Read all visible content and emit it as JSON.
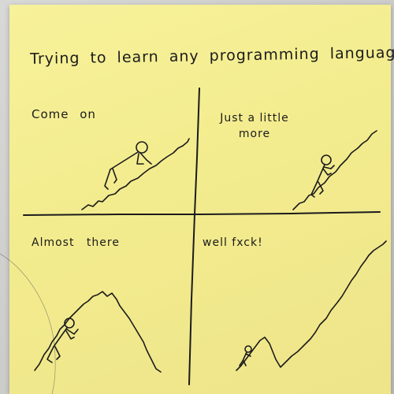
{
  "title": "Trying to learn any programming language",
  "panels": [
    {
      "caption": "Come on"
    },
    {
      "caption": "Just a little more"
    },
    {
      "caption": "Almost there"
    },
    {
      "caption": "well fxck!"
    }
  ]
}
